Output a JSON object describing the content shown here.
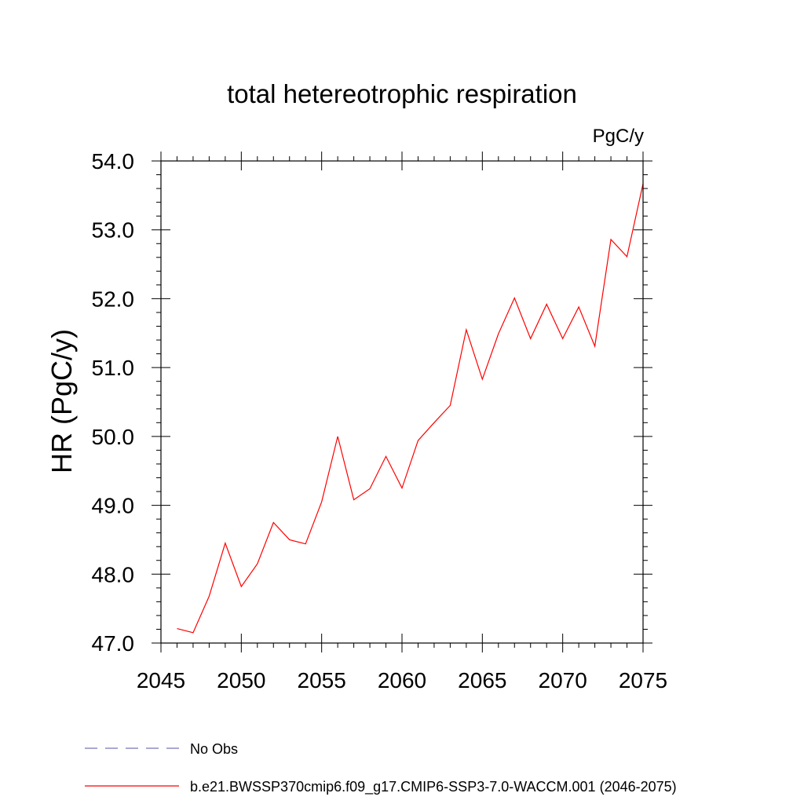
{
  "chart_data": {
    "type": "line",
    "title": "total hetereotrophic respiration",
    "units_label": "PgC/y",
    "xlabel": "",
    "ylabel": "HR  (PgC/y)",
    "xlim": [
      2045,
      2075
    ],
    "ylim": [
      47.0,
      54.0
    ],
    "x_ticks": [
      2045,
      2050,
      2055,
      2060,
      2065,
      2070,
      2075
    ],
    "x_tick_labels": [
      "2045",
      "2050",
      "2055",
      "2060",
      "2065",
      "2070",
      "2075"
    ],
    "y_ticks": [
      47.0,
      48.0,
      49.0,
      50.0,
      51.0,
      52.0,
      53.0,
      54.0
    ],
    "y_tick_labels": [
      "47.0",
      "48.0",
      "49.0",
      "50.0",
      "51.0",
      "52.0",
      "53.0",
      "54.0"
    ],
    "grid": false,
    "legend_position": "bottom",
    "legend": [
      {
        "label": "No Obs",
        "color": "#7b74b8",
        "style": "dashed"
      },
      {
        "label": "b.e21.BWSSP370cmip6.f09_g17.CMIP6-SSP3-7.0-WACCM.001 (2046-2075)",
        "color": "#ff0000",
        "style": "solid"
      }
    ],
    "series": [
      {
        "name": "b.e21.BWSSP370cmip6.f09_g17.CMIP6-SSP3-7.0-WACCM.001 (2046-2075)",
        "color": "#ff0000",
        "x": [
          2046,
          2047,
          2048,
          2049,
          2050,
          2051,
          2052,
          2053,
          2054,
          2055,
          2056,
          2057,
          2058,
          2059,
          2060,
          2061,
          2062,
          2063,
          2064,
          2065,
          2066,
          2067,
          2068,
          2069,
          2070,
          2071,
          2072,
          2073,
          2074,
          2075
        ],
        "values": [
          47.21,
          47.15,
          47.68,
          48.45,
          47.82,
          48.15,
          48.75,
          48.5,
          48.44,
          49.05,
          50.0,
          49.08,
          49.24,
          49.71,
          49.25,
          49.94,
          50.2,
          50.45,
          51.55,
          50.83,
          51.49,
          52.01,
          51.42,
          51.92,
          51.42,
          51.88,
          51.31,
          52.86,
          52.61,
          53.67
        ]
      }
    ]
  }
}
